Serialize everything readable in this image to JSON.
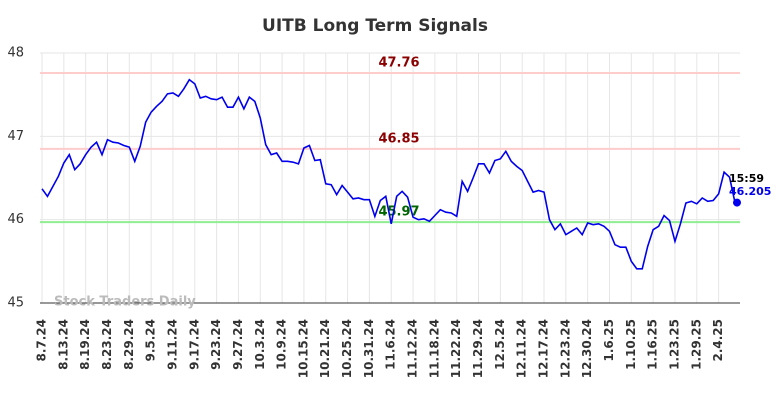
{
  "chart_data": {
    "type": "line",
    "title": "UITB Long Term Signals",
    "watermark": "Stock Traders Daily",
    "color": "#0000ee",
    "ylim": [
      45,
      48
    ],
    "yticks": [
      45,
      46,
      47,
      48
    ],
    "grid": true,
    "categories": [
      "8.7.24",
      null,
      null,
      null,
      "8.13.24",
      null,
      null,
      null,
      "8.19.24",
      null,
      null,
      null,
      "8.23.24",
      null,
      null,
      null,
      "8.29.24",
      null,
      null,
      null,
      "9.5.24",
      null,
      null,
      null,
      "9.11.24",
      null,
      null,
      null,
      "9.17.24",
      null,
      null,
      null,
      "9.23.24",
      null,
      null,
      null,
      "9.27.24",
      null,
      null,
      null,
      "10.3.24",
      null,
      null,
      null,
      "10.9.24",
      null,
      null,
      null,
      "10.15.24",
      null,
      null,
      null,
      "10.21.24",
      null,
      null,
      null,
      "10.25.24",
      null,
      null,
      null,
      "10.31.24",
      null,
      null,
      null,
      "11.6.24",
      null,
      null,
      null,
      "11.12.24",
      null,
      null,
      null,
      "11.18.24",
      null,
      null,
      null,
      "11.22.24",
      null,
      null,
      null,
      "11.29.24",
      null,
      null,
      null,
      "12.5.24",
      null,
      null,
      null,
      "12.11.24",
      null,
      null,
      null,
      "12.17.24",
      null,
      null,
      null,
      "12.23.24",
      null,
      null,
      null,
      "12.30.24",
      null,
      null,
      null,
      "1.6.25",
      null,
      null,
      null,
      "1.10.25",
      null,
      null,
      null,
      "1.16.25",
      null,
      null,
      null,
      "1.23.25",
      null,
      null,
      null,
      "1.29.25",
      null,
      null,
      null,
      "2.4.25",
      null,
      null,
      null
    ],
    "values": [
      46.37,
      46.28,
      46.4,
      46.52,
      46.68,
      46.78,
      46.6,
      46.67,
      46.78,
      46.87,
      46.93,
      46.78,
      46.96,
      46.93,
      46.92,
      46.89,
      46.87,
      46.7,
      46.88,
      47.17,
      47.29,
      47.36,
      47.42,
      47.51,
      47.52,
      47.48,
      47.57,
      47.68,
      47.63,
      47.46,
      47.48,
      47.45,
      47.44,
      47.47,
      47.35,
      47.35,
      47.47,
      47.33,
      47.47,
      47.42,
      47.22,
      46.9,
      46.78,
      46.8,
      46.7,
      46.7,
      46.69,
      46.67,
      46.86,
      46.89,
      46.71,
      46.72,
      46.43,
      46.42,
      46.3,
      46.41,
      46.33,
      46.25,
      46.26,
      46.24,
      46.24,
      46.04,
      46.23,
      46.28,
      45.95,
      46.28,
      46.34,
      46.27,
      46.03,
      46.0,
      46.01,
      45.98,
      46.05,
      46.12,
      46.09,
      46.08,
      46.04,
      46.46,
      46.34,
      46.5,
      46.67,
      46.67,
      46.56,
      46.71,
      46.73,
      46.82,
      46.7,
      46.64,
      46.59,
      46.46,
      46.33,
      46.35,
      46.33,
      46.0,
      45.88,
      45.95,
      45.82,
      45.86,
      45.9,
      45.82,
      45.96,
      45.94,
      45.95,
      45.92,
      45.86,
      45.7,
      45.67,
      45.67,
      45.5,
      45.41,
      45.41,
      45.68,
      45.88,
      45.92,
      46.05,
      45.99,
      45.74,
      45.95,
      46.2,
      46.22,
      46.19,
      46.26,
      46.22,
      46.23,
      46.31,
      46.57,
      46.51,
      46.205
    ],
    "hlines": [
      {
        "value": 47.76,
        "color": "#ffcccc",
        "label_color": "#8b0000"
      },
      {
        "value": 46.85,
        "color": "#ffcccc",
        "label_color": "#8b0000"
      },
      {
        "value": 45.97,
        "color": "#90ee90",
        "label_color": "#006400"
      }
    ],
    "last_time": "15:59"
  }
}
